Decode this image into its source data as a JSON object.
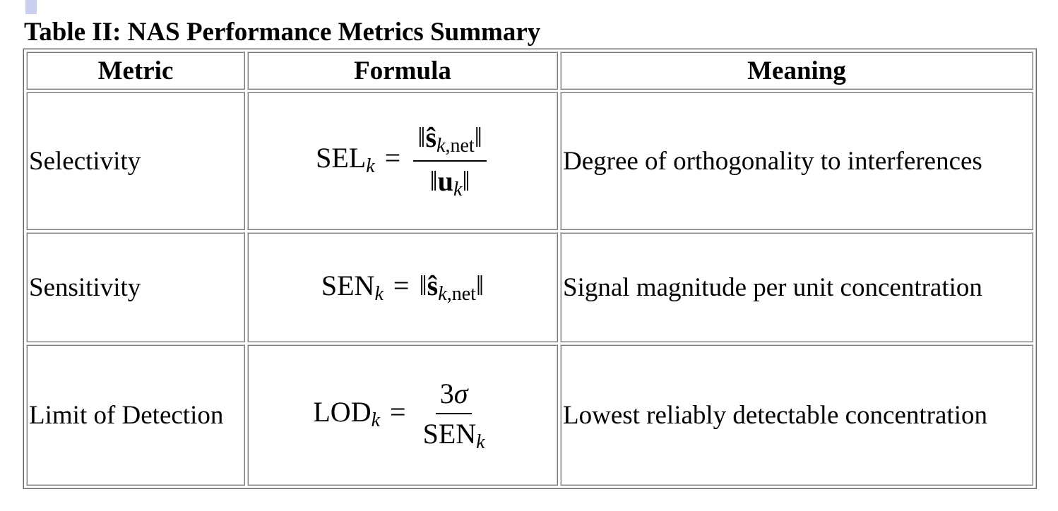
{
  "table": {
    "title": "Table II: NAS Performance Metrics Summary",
    "columns": [
      "Metric",
      "Formula",
      "Meaning"
    ],
    "rows": [
      {
        "metric": "Selectivity",
        "formula": {
          "lhs": [
            {
              "text": "SEL"
            },
            {
              "text": "k",
              "style": "sub"
            }
          ],
          "eq": "=",
          "numerator": [
            {
              "text": "‖"
            },
            {
              "text": "ŝ",
              "style": "bold"
            },
            {
              "text": "k",
              "style": "sub"
            },
            {
              "text": ",net",
              "style": "sub-upright"
            },
            {
              "text": "‖"
            }
          ],
          "denominator": [
            {
              "text": "‖"
            },
            {
              "text": "u",
              "style": "bold"
            },
            {
              "text": "k",
              "style": "sub"
            },
            {
              "text": "‖"
            }
          ]
        },
        "meaning": "Degree of orthogonality to interferences"
      },
      {
        "metric": "Sensitivity",
        "formula": {
          "lhs": [
            {
              "text": "SEN"
            },
            {
              "text": "k",
              "style": "sub"
            }
          ],
          "eq": "=",
          "rhs": [
            {
              "text": "‖"
            },
            {
              "text": "ŝ",
              "style": "bold"
            },
            {
              "text": "k",
              "style": "sub"
            },
            {
              "text": ",net",
              "style": "sub-upright"
            },
            {
              "text": "‖"
            }
          ]
        },
        "meaning": "Signal magnitude per unit concentration"
      },
      {
        "metric": "Limit of Detection",
        "formula": {
          "lhs": [
            {
              "text": "LOD"
            },
            {
              "text": "k",
              "style": "sub"
            }
          ],
          "eq": "=",
          "numerator": [
            {
              "text": "3"
            },
            {
              "text": "σ",
              "style": "italic"
            }
          ],
          "denominator": [
            {
              "text": "SEN"
            },
            {
              "text": "k",
              "style": "sub"
            }
          ]
        },
        "meaning": "Lowest reliably detectable concentration"
      }
    ]
  }
}
